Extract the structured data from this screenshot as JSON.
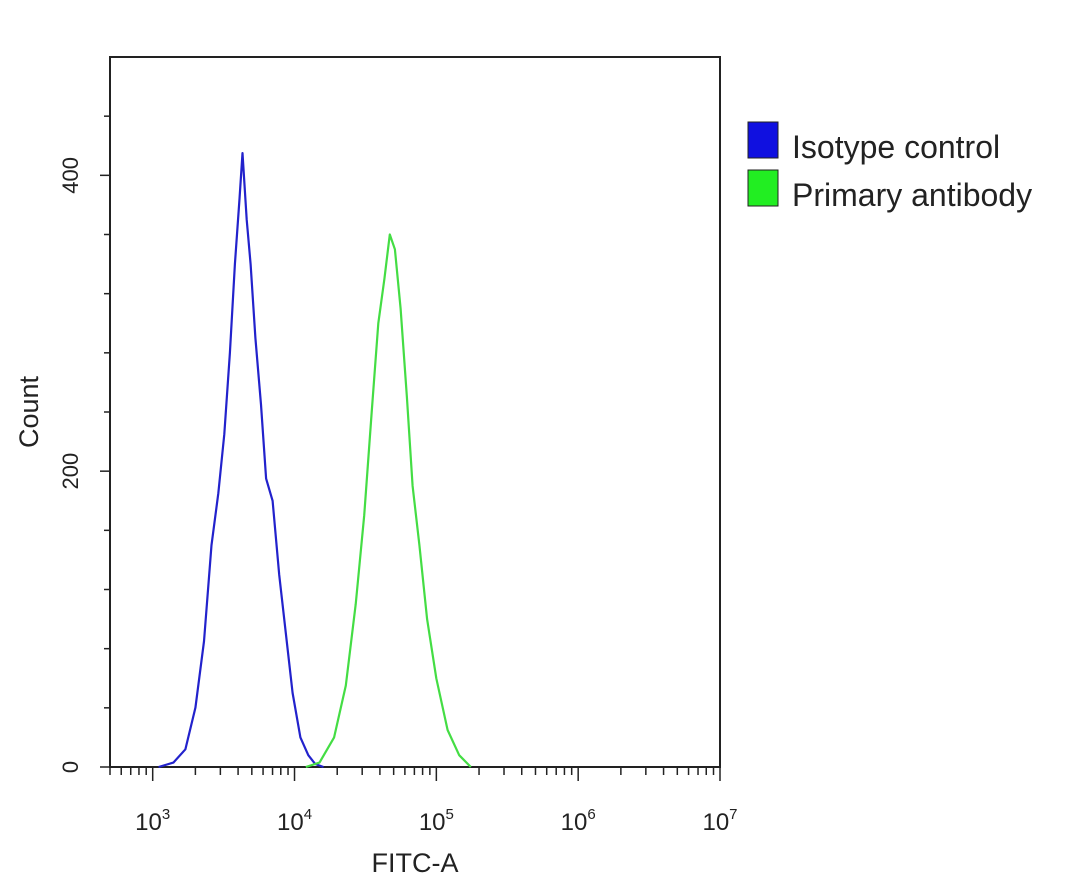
{
  "chart_data": {
    "type": "area",
    "xlabel": "FITC-A",
    "ylabel": "Count",
    "x_scale": "log",
    "xlim": [
      500,
      10000000
    ],
    "ylim": [
      0,
      480
    ],
    "x_ticks": [
      {
        "value": 1000,
        "base": "10",
        "exp": "3"
      },
      {
        "value": 10000,
        "base": "10",
        "exp": "4"
      },
      {
        "value": 100000,
        "base": "10",
        "exp": "5"
      },
      {
        "value": 1000000,
        "base": "10",
        "exp": "6"
      },
      {
        "value": 10000000,
        "base": "10",
        "exp": "7"
      }
    ],
    "y_ticks": [
      {
        "value": 0,
        "label": "0"
      },
      {
        "value": 200,
        "label": "200"
      },
      {
        "value": 400,
        "label": "400"
      }
    ],
    "legend_position": "right, outside plot",
    "series": [
      {
        "name": "Isotype control",
        "color": "#2222cc",
        "legend_color": "#1010e0",
        "points": [
          [
            1100,
            0
          ],
          [
            1400,
            3
          ],
          [
            1700,
            12
          ],
          [
            2000,
            40
          ],
          [
            2300,
            85
          ],
          [
            2600,
            150
          ],
          [
            2900,
            185
          ],
          [
            3200,
            225
          ],
          [
            3500,
            280
          ],
          [
            3800,
            340
          ],
          [
            4100,
            385
          ],
          [
            4300,
            415
          ],
          [
            4600,
            370
          ],
          [
            4900,
            340
          ],
          [
            5300,
            290
          ],
          [
            5800,
            245
          ],
          [
            6300,
            195
          ],
          [
            7000,
            180
          ],
          [
            7800,
            130
          ],
          [
            8700,
            90
          ],
          [
            9700,
            50
          ],
          [
            11000,
            20
          ],
          [
            12500,
            8
          ],
          [
            14000,
            2
          ],
          [
            16000,
            0
          ]
        ]
      },
      {
        "name": "Primary antibody",
        "color": "#44dd44",
        "legend_color": "#22ee22",
        "points": [
          [
            12000,
            0
          ],
          [
            15000,
            3
          ],
          [
            19000,
            20
          ],
          [
            23000,
            55
          ],
          [
            27000,
            110
          ],
          [
            31000,
            170
          ],
          [
            35000,
            240
          ],
          [
            39000,
            300
          ],
          [
            43000,
            330
          ],
          [
            47000,
            360
          ],
          [
            51000,
            350
          ],
          [
            56000,
            310
          ],
          [
            62000,
            250
          ],
          [
            68000,
            190
          ],
          [
            76000,
            150
          ],
          [
            86000,
            100
          ],
          [
            100000,
            60
          ],
          [
            120000,
            25
          ],
          [
            145000,
            8
          ],
          [
            175000,
            0
          ]
        ]
      }
    ]
  }
}
